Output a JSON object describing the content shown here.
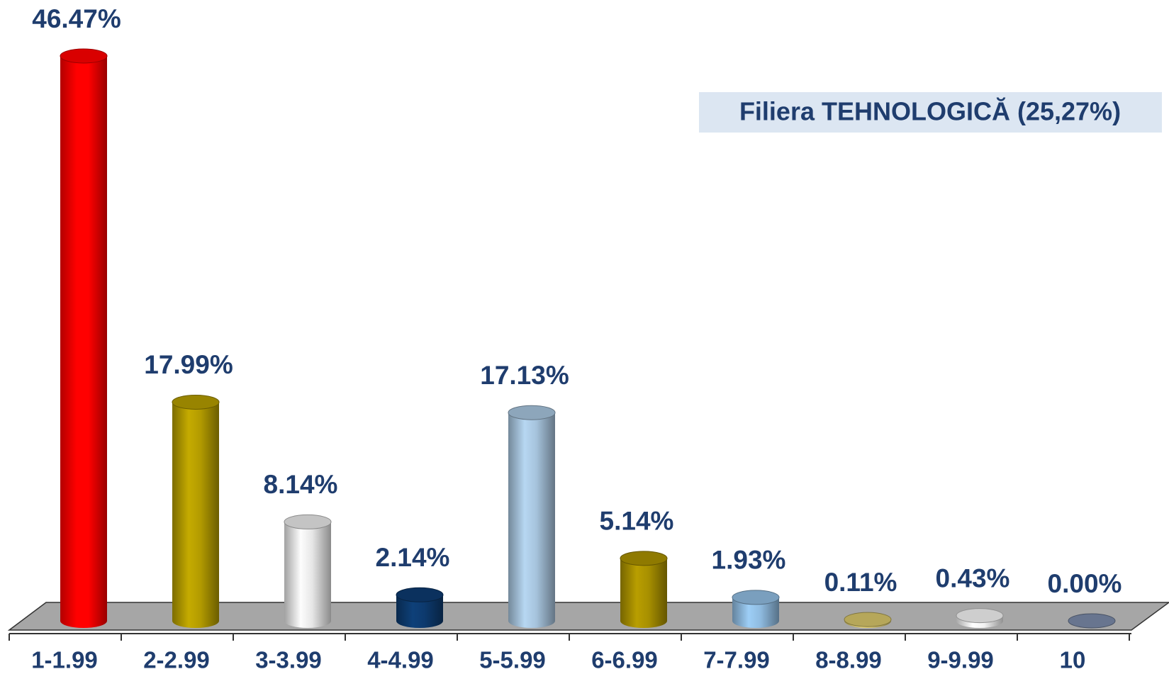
{
  "chart_data": {
    "type": "bar",
    "annotation": "Filiera TEHNOLOGICĂ (25,27%)",
    "categories": [
      "1-1.99",
      "2-2.99",
      "3-3.99",
      "4-4.99",
      "5-5.99",
      "6-6.99",
      "7-7.99",
      "8-8.99",
      "9-9.99",
      "10"
    ],
    "values": [
      46.47,
      17.99,
      8.14,
      2.14,
      17.13,
      5.14,
      1.93,
      0.11,
      0.43,
      0.0
    ],
    "value_labels": [
      "46.47%",
      "17.99%",
      "8.14%",
      "2.14%",
      "17.13%",
      "5.14%",
      "1.93%",
      "0.11%",
      "0.43%",
      "0.00%"
    ],
    "colors": [
      "#ff0000",
      "#b39b00",
      "#e6e6e6",
      "#0d3a6e",
      "#a6c3dc",
      "#a89000",
      "#8fbbe0",
      "#d6c46a",
      "#f2f2f2",
      "#7a8aa8"
    ]
  }
}
